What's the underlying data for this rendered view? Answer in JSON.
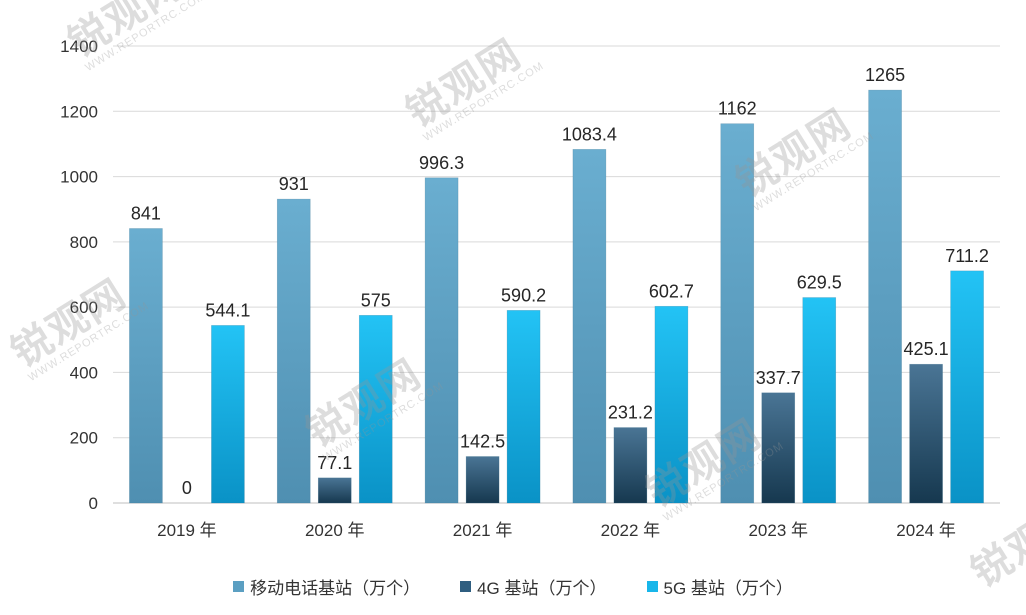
{
  "chart_data": {
    "type": "bar",
    "categories": [
      "2019 年",
      "2020 年",
      "2021 年",
      "2022 年",
      "2023 年",
      "2024 年"
    ],
    "series": [
      {
        "name": "移动电话基站（万个）",
        "values": [
          841,
          931,
          996.3,
          1083.4,
          1162,
          1265
        ],
        "labels": [
          "841",
          "931",
          "996.3",
          "1083.4",
          "1162",
          "1265"
        ],
        "color": "#5b9fc2"
      },
      {
        "name": "4G 基站（万个）",
        "values": [
          0,
          77.1,
          142.5,
          231.2,
          337.7,
          425.1
        ],
        "labels": [
          "0",
          "77.1",
          "142.5",
          "231.2",
          "337.7",
          "425.1"
        ],
        "color": "#2f5e80"
      },
      {
        "name": "5G 基站（万个）",
        "values": [
          544.1,
          575,
          590.2,
          602.7,
          629.5,
          711.2
        ],
        "labels": [
          "544.1",
          "575",
          "590.2",
          "602.7",
          "629.5",
          "711.2"
        ],
        "color": "#18b6ea"
      }
    ],
    "yticks": [
      "0",
      "200",
      "400",
      "600",
      "800",
      "1000",
      "1200",
      "1400"
    ],
    "ylim": [
      0,
      1400
    ],
    "grid": true,
    "legend_position": "bottom",
    "xlabel": "",
    "ylabel": "",
    "title": ""
  },
  "watermark": {
    "logo_text": "锐观网",
    "url_text": "WWW.REPORTRC.COM"
  }
}
